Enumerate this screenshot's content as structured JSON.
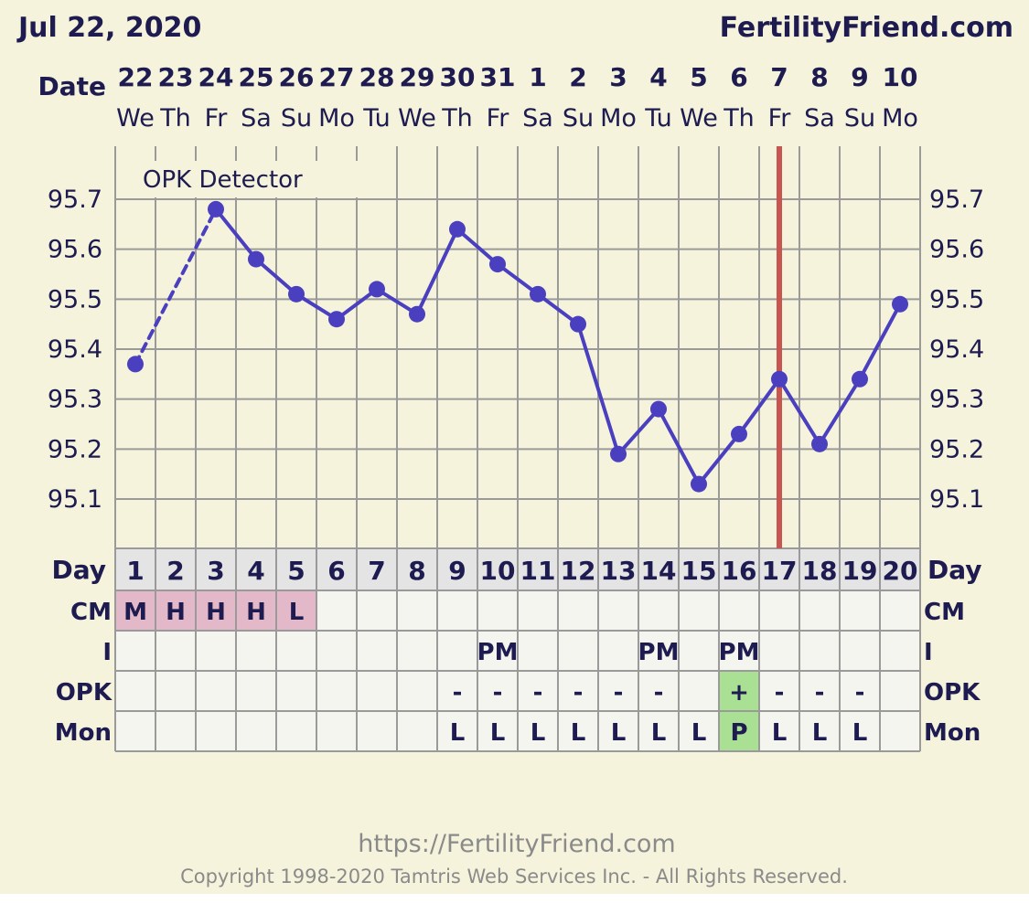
{
  "header": {
    "date": "Jul 22, 2020",
    "site": "FertilityFriend.com",
    "date_row_label": "Date"
  },
  "chart_data": {
    "type": "line",
    "dates": [
      "22",
      "23",
      "24",
      "25",
      "26",
      "27",
      "28",
      "29",
      "30",
      "31",
      "1",
      "2",
      "3",
      "4",
      "5",
      "6",
      "7",
      "8",
      "9",
      "10"
    ],
    "weekdays": [
      "We",
      "Th",
      "Fr",
      "Sa",
      "Su",
      "Mo",
      "Tu",
      "We",
      "Th",
      "Fr",
      "Sa",
      "Su",
      "Mo",
      "Tu",
      "We",
      "Th",
      "Fr",
      "Sa",
      "Su",
      "Mo"
    ],
    "days": [
      "1",
      "2",
      "3",
      "4",
      "5",
      "6",
      "7",
      "8",
      "9",
      "10",
      "11",
      "12",
      "13",
      "14",
      "15",
      "16",
      "17",
      "18",
      "19",
      "20"
    ],
    "series": [
      {
        "values": [
          95.37,
          null,
          95.68,
          95.58,
          95.51,
          95.46,
          95.52,
          95.47,
          95.64,
          95.57,
          95.51,
          95.45,
          95.19,
          95.28,
          95.13,
          95.23,
          95.34,
          95.21,
          95.34,
          95.49
        ]
      }
    ],
    "y_ticks": [
      "95.7",
      "95.6",
      "95.5",
      "95.4",
      "95.3",
      "95.2",
      "95.1"
    ],
    "ylim": [
      94.98,
      95.78
    ],
    "dashed_segment": [
      1,
      3
    ],
    "line_color": "#4a3fbf",
    "marker_day": 17,
    "marker_color": "#c8554f",
    "annotation": "OPK Detector",
    "grid": true
  },
  "rows": {
    "day_label": "Day",
    "cm_label": "CM",
    "i_label": "I",
    "opk_label": "OPK",
    "mon_label": "Mon",
    "cm": [
      "M",
      "H",
      "H",
      "H",
      "L",
      "",
      "",
      "",
      "",
      "",
      "",
      "",
      "",
      "",
      "",
      "",
      "",
      "",
      "",
      ""
    ],
    "cm_color": "#e3b8c8",
    "i": [
      "",
      "",
      "",
      "",
      "",
      "",
      "",
      "",
      "",
      "PM",
      "",
      "",
      "",
      "PM",
      "",
      "PM",
      "",
      "",
      "",
      ""
    ],
    "opk": [
      "",
      "",
      "",
      "",
      "",
      "",
      "",
      "",
      "-",
      "-",
      "-",
      "-",
      "-",
      "-",
      "",
      "+",
      "-",
      "-",
      "-",
      ""
    ],
    "mon": [
      "",
      "",
      "",
      "",
      "",
      "",
      "",
      "",
      "L",
      "L",
      "L",
      "L",
      "L",
      "L",
      "L",
      "P",
      "L",
      "L",
      "L",
      ""
    ],
    "highlight_color": "#a9e093"
  },
  "footer": {
    "url": "https://FertilityFriend.com",
    "copyright": "Copyright 1998-2020 Tamtris Web Services Inc. - All Rights Reserved."
  },
  "colors": {
    "background": "#f5f3dc",
    "grid": "#9a9a9a",
    "text": "#1d1b4f",
    "cell_bg": "#f5f5f0",
    "day_row_bg": "#e4e4e4"
  }
}
